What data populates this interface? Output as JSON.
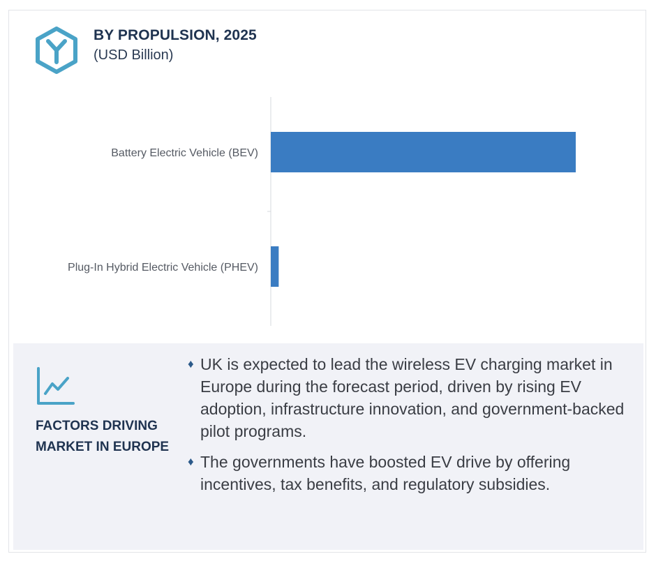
{
  "header": {
    "title": "BY PROPULSION, 2025",
    "subtitle": "(USD Billion)",
    "icon": "hexagon-y-icon"
  },
  "colors": {
    "bar": "#3a7cc2",
    "icon": "#4aa3c7",
    "heading": "#1f3350",
    "panel_bg": "#f1f2f7"
  },
  "chart_data": {
    "type": "bar",
    "orientation": "horizontal",
    "title": "BY PROPULSION, 2025",
    "subtitle": "(USD Billion)",
    "categories": [
      "Battery Electric Vehicle (BEV)",
      "Plug-In Hybrid  Electric Vehicle (PHEV)"
    ],
    "values": [
      100,
      2.6
    ],
    "xlim": [
      0,
      100
    ],
    "grid": false,
    "legend": "none"
  },
  "factors": {
    "icon": "line-chart-icon",
    "heading": "FACTORS DRIVING MARKET IN EUROPE",
    "bullets": [
      "UK is expected to lead the wireless EV charging market in Europe during the forecast period, driven by rising EV adoption, infrastructure innovation, and government-backed pilot programs.",
      "The governments have boosted EV drive by offering incentives, tax benefits, and regulatory subsidies."
    ]
  }
}
